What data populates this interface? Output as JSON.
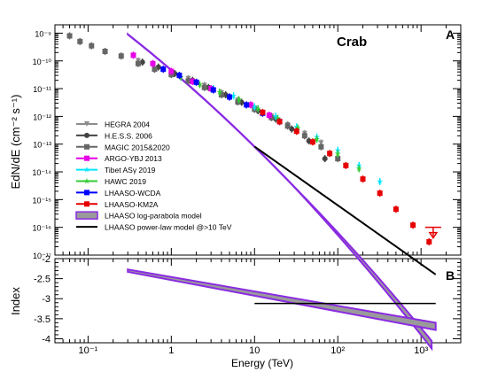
{
  "chart_data": [
    {
      "type": "scatter",
      "panel_label": "A",
      "annotation": "Crab",
      "ylabel": "EdN/dE (cm⁻² s⁻¹)",
      "xscale": "log",
      "yscale": "log",
      "xlim": [
        0.04,
        3000
      ],
      "ylim": [
        1e-17,
        2e-09
      ],
      "x_tick_labels": [
        "10⁻¹",
        "1",
        "10",
        "10²",
        "10³"
      ],
      "y_tick_labels": [
        "10⁻¹⁷",
        "10⁻¹⁶",
        "10⁻¹⁵",
        "10⁻¹⁴",
        "10⁻¹³",
        "10⁻¹²",
        "10⁻¹¹",
        "10⁻¹⁰",
        "10⁻⁹"
      ],
      "legend_position": "bottom-left",
      "series": [
        {
          "name": "HEGRA 2004",
          "color": "#8c8c8c",
          "marker": "triangle-down",
          "points": [
            [
              0.4,
              1e-10
            ],
            [
              0.6,
              7e-11
            ],
            [
              1.0,
              4e-11
            ],
            [
              1.6,
              2.3e-11
            ],
            [
              2.5,
              1.3e-11
            ],
            [
              4.0,
              7e-12
            ],
            [
              6.3,
              3.8e-12
            ],
            [
              10,
              2e-12
            ],
            [
              16,
              1e-12
            ],
            [
              25,
              5e-13
            ],
            [
              40,
              2.4e-13
            ],
            [
              63,
              1.1e-13
            ]
          ]
        },
        {
          "name": "H.E.S.S. 2006",
          "color": "#444444",
          "marker": "circle",
          "points": [
            [
              0.45,
              9e-11
            ],
            [
              0.7,
              6e-11
            ],
            [
              1.1,
              3.5e-11
            ],
            [
              1.8,
              2e-11
            ],
            [
              2.8,
              1.1e-11
            ],
            [
              4.5,
              6e-12
            ],
            [
              7,
              3.2e-12
            ],
            [
              11,
              1.6e-12
            ],
            [
              18,
              8e-13
            ],
            [
              28,
              3.5e-13
            ],
            [
              45,
              1.3e-13
            ],
            [
              70,
              3e-14
            ]
          ]
        },
        {
          "name": "MAGIC 2015&2020",
          "color": "#666666",
          "marker": "square",
          "points": [
            [
              0.06,
              8e-10
            ],
            [
              0.08,
              5e-10
            ],
            [
              0.11,
              3.5e-10
            ],
            [
              0.16,
              2.2e-10
            ],
            [
              0.25,
              1.5e-10
            ],
            [
              0.4,
              8e-11
            ],
            [
              0.63,
              5e-11
            ],
            [
              1.0,
              3.2e-11
            ],
            [
              1.6,
              1.9e-11
            ],
            [
              2.5,
              1.1e-11
            ],
            [
              4,
              6e-12
            ],
            [
              6.3,
              3.3e-12
            ],
            [
              10,
              1.8e-12
            ],
            [
              16,
              9e-13
            ],
            [
              25,
              4.5e-13
            ],
            [
              40,
              2e-13
            ],
            [
              63,
              8e-14
            ],
            [
              100,
              3e-14
            ]
          ]
        },
        {
          "name": "ARGO-YBJ 2013",
          "color": "#e600e6",
          "marker": "square",
          "points": [
            [
              0.35,
              1.6e-10
            ],
            [
              0.6,
              8e-11
            ],
            [
              1.0,
              4.2e-11
            ],
            [
              1.8,
              1.8e-11
            ],
            [
              3,
              1e-11
            ],
            [
              5,
              5e-12
            ],
            [
              9,
              2.6e-12
            ],
            [
              15,
              1.1e-12
            ]
          ]
        },
        {
          "name": "Tibet ASγ 2019",
          "color": "#00e5ff",
          "marker": "star",
          "points": [
            [
              3.2,
              1e-11
            ],
            [
              5.6,
              5.5e-12
            ],
            [
              10,
              2.2e-12
            ],
            [
              18,
              1e-12
            ],
            [
              32,
              4.2e-13
            ],
            [
              56,
              1.8e-13
            ],
            [
              100,
              6e-14
            ],
            [
              180,
              1.7e-14
            ],
            [
              320,
              4.5e-15
            ]
          ]
        },
        {
          "name": "HAWC 2019",
          "color": "#33cc33",
          "marker": "star",
          "points": [
            [
              1.3,
              2.6e-11
            ],
            [
              2.2,
              1.4e-11
            ],
            [
              3.8,
              7.5e-12
            ],
            [
              6.5,
              4e-12
            ],
            [
              11,
              1.9e-12
            ],
            [
              19,
              8.5e-13
            ],
            [
              33,
              3.8e-13
            ],
            [
              56,
              1.5e-13
            ],
            [
              100,
              4.5e-14
            ],
            [
              180,
              1.3e-14
            ]
          ]
        },
        {
          "name": "LHAASO-WCDA",
          "color": "#0000ff",
          "marker": "square",
          "points": [
            [
              0.8,
              5e-11
            ],
            [
              1.25,
              3e-11
            ],
            [
              2.0,
              1.7e-11
            ],
            [
              3.2,
              9e-12
            ],
            [
              5,
              5e-12
            ],
            [
              8,
              2.6e-12
            ],
            [
              12.5,
              1.3e-12
            ],
            [
              20,
              6.5e-13
            ]
          ]
        },
        {
          "name": "LHAASO-KM2A",
          "color": "#e60000",
          "marker": "square",
          "points": [
            [
              12.5,
              1.4e-12
            ],
            [
              20,
              6.5e-13
            ],
            [
              32,
              2.9e-13
            ],
            [
              50,
              1.2e-13
            ],
            [
              80,
              4.6e-14
            ],
            [
              125,
              1.7e-14
            ],
            [
              200,
              5.5e-15
            ],
            [
              320,
              1.7e-15
            ],
            [
              500,
              4.5e-16
            ],
            [
              800,
              1.2e-16
            ],
            [
              1250,
              3e-17
            ]
          ],
          "upper_limit": [
            1400,
            1e-16
          ]
        },
        {
          "name": "LHAASO log-parabola model",
          "color": "#8a2be2",
          "style": "band"
        },
        {
          "name": "LHAASO power-law model @>10 TeV",
          "color": "#000000",
          "style": "line"
        }
      ]
    },
    {
      "type": "line",
      "panel_label": "B",
      "xlabel": "Energy (TeV)",
      "ylabel": "Index",
      "xscale": "log",
      "xlim": [
        0.04,
        3000
      ],
      "ylim": [
        -4.1,
        -2
      ],
      "y_tick_labels": [
        "-2",
        "-2.5",
        "-3",
        "-3.5",
        "-4"
      ],
      "series": [
        {
          "name": "LHAASO log-parabola model",
          "x": [
            0.3,
            1500
          ],
          "lower": [
            -2.33,
            -3.78
          ],
          "upper": [
            -2.27,
            -3.6
          ]
        },
        {
          "name": "LHAASO power-law model @>10 TeV",
          "x": [
            10,
            1500
          ],
          "y": [
            -3.12,
            -3.12
          ]
        }
      ]
    }
  ]
}
